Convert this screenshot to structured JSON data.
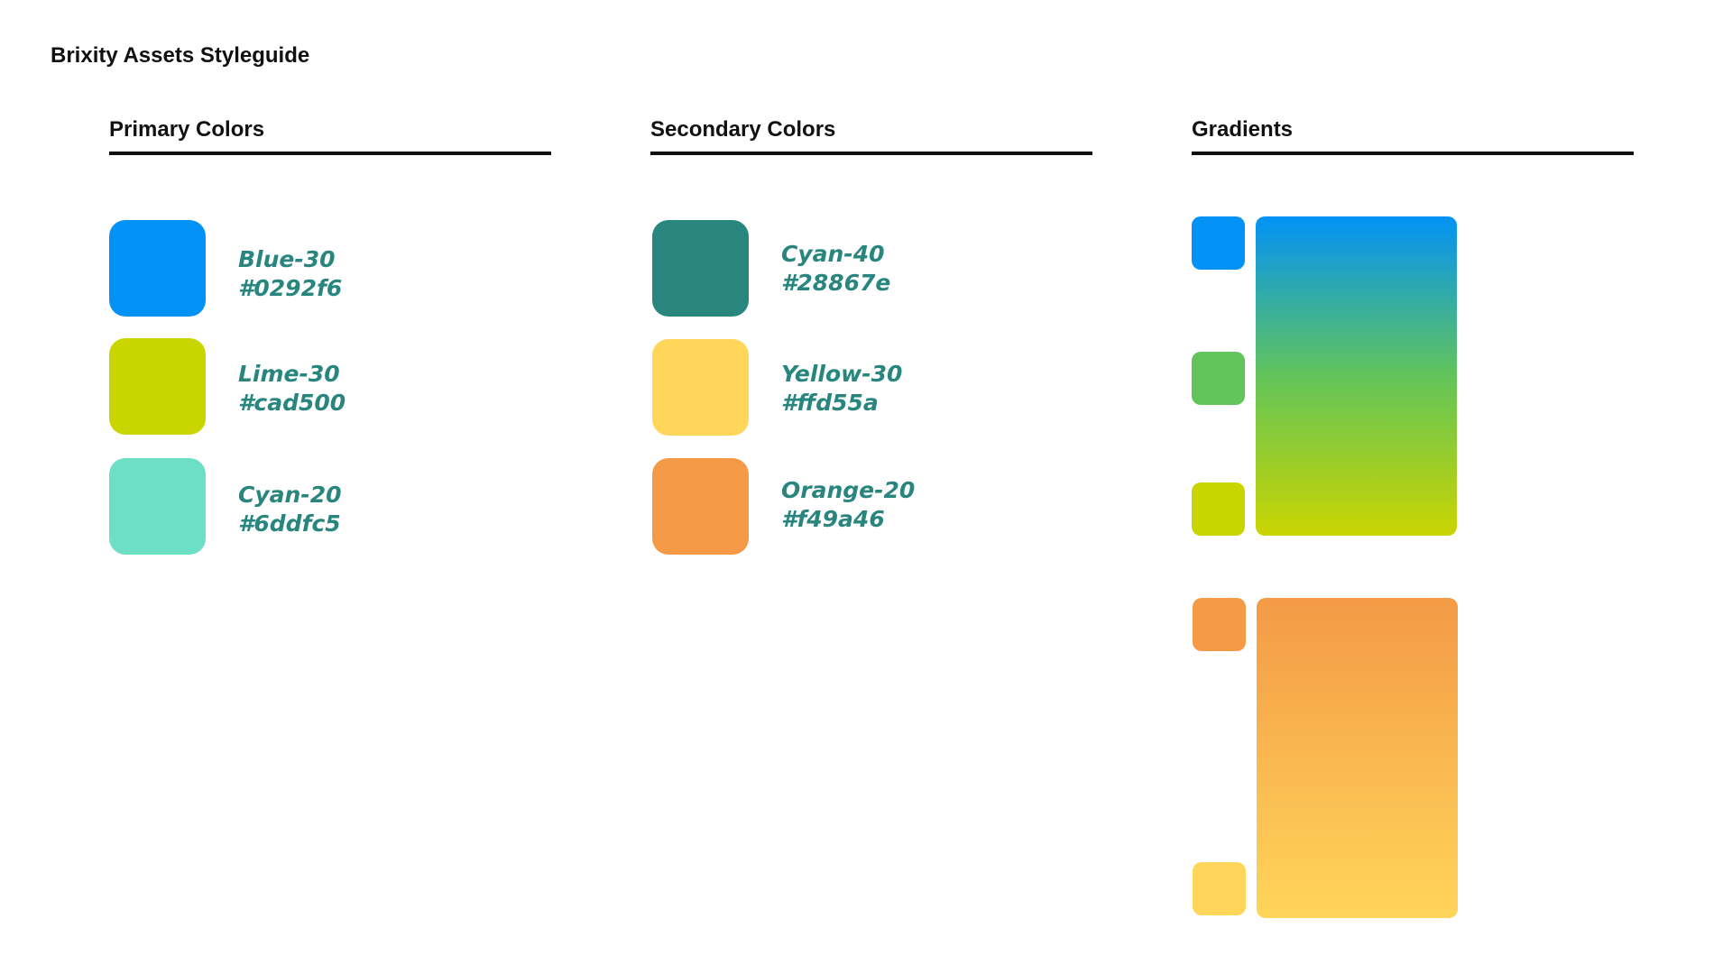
{
  "page": {
    "title": "Brixity Assets Styleguide"
  },
  "sections": {
    "primary": {
      "title": "Primary Colors",
      "colors": [
        {
          "name": "Blue-30",
          "hex": "#0292f6"
        },
        {
          "name": "Lime-30",
          "hex": "#cad500"
        },
        {
          "name": "Cyan-20",
          "hex": "#6ddfc5"
        }
      ]
    },
    "secondary": {
      "title": "Secondary Colors",
      "colors": [
        {
          "name": "Cyan-40",
          "hex": "#28867e"
        },
        {
          "name": "Yellow-30",
          "hex": "#ffd55a"
        },
        {
          "name": "Orange-20",
          "hex": "#f49a46"
        }
      ]
    },
    "gradients": {
      "title": "Gradients",
      "items": [
        {
          "stops": [
            "#0292f6",
            "#62c45a",
            "#cad500"
          ]
        },
        {
          "stops": [
            "#f49a46",
            "#ffd55a"
          ]
        }
      ]
    }
  },
  "colors": {
    "label_text": "#28867e",
    "heading_text": "#111111",
    "rule": "#111111"
  }
}
